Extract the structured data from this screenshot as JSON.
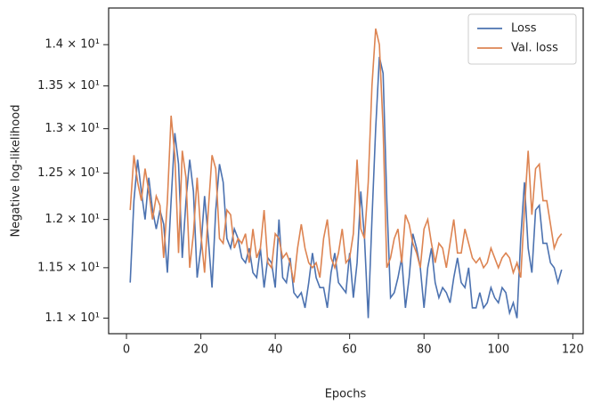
{
  "chart_data": {
    "type": "line",
    "xlabel": "Epochs",
    "ylabel": "Negative log-likelihood",
    "x": [
      1,
      2,
      3,
      4,
      5,
      6,
      7,
      8,
      9,
      10,
      11,
      12,
      13,
      14,
      15,
      16,
      17,
      18,
      19,
      20,
      21,
      22,
      23,
      24,
      25,
      26,
      27,
      28,
      29,
      30,
      31,
      32,
      33,
      34,
      35,
      36,
      37,
      38,
      39,
      40,
      41,
      42,
      43,
      44,
      45,
      46,
      47,
      48,
      49,
      50,
      51,
      52,
      53,
      54,
      55,
      56,
      57,
      58,
      59,
      60,
      61,
      62,
      63,
      64,
      65,
      66,
      67,
      68,
      69,
      70,
      71,
      72,
      73,
      74,
      75,
      76,
      77,
      78,
      79,
      80,
      81,
      82,
      83,
      84,
      85,
      86,
      87,
      88,
      89,
      90,
      91,
      92,
      93,
      94,
      95,
      96,
      97,
      98,
      99,
      100,
      101,
      102,
      103,
      104,
      105,
      106,
      107,
      108,
      109,
      110,
      111,
      112,
      113,
      114,
      115,
      116,
      117
    ],
    "series": [
      {
        "name": "Loss",
        "color": "#4c72b0",
        "values": [
          11.35,
          12.2,
          12.65,
          12.3,
          12.0,
          12.45,
          12.1,
          11.9,
          12.1,
          11.95,
          11.45,
          12.2,
          12.95,
          12.6,
          11.6,
          12.2,
          12.65,
          12.3,
          11.4,
          11.7,
          12.25,
          11.8,
          11.3,
          12.1,
          12.6,
          12.4,
          11.8,
          11.7,
          11.9,
          11.8,
          11.6,
          11.55,
          11.7,
          11.45,
          11.4,
          11.7,
          11.3,
          11.6,
          11.55,
          11.3,
          12.0,
          11.4,
          11.35,
          11.6,
          11.25,
          11.2,
          11.25,
          11.1,
          11.35,
          11.65,
          11.4,
          11.3,
          11.3,
          11.1,
          11.45,
          11.65,
          11.35,
          11.3,
          11.25,
          11.65,
          11.2,
          11.55,
          12.3,
          11.8,
          11.0,
          12.0,
          13.0,
          13.85,
          13.65,
          12.2,
          11.2,
          11.25,
          11.4,
          11.6,
          11.1,
          11.4,
          11.85,
          11.7,
          11.5,
          11.1,
          11.5,
          11.7,
          11.35,
          11.2,
          11.3,
          11.25,
          11.15,
          11.4,
          11.6,
          11.35,
          11.3,
          11.5,
          11.1,
          11.1,
          11.25,
          11.1,
          11.15,
          11.3,
          11.2,
          11.15,
          11.3,
          11.25,
          11.05,
          11.15,
          11.0,
          11.8,
          12.4,
          11.7,
          11.45,
          12.1,
          12.15,
          11.75,
          11.75,
          11.55,
          11.5,
          11.35,
          11.48
        ]
      },
      {
        "name": "Val. loss",
        "color": "#dd8452",
        "values": [
          12.1,
          12.7,
          12.4,
          12.2,
          12.55,
          12.3,
          12.0,
          12.25,
          12.15,
          11.6,
          12.2,
          13.15,
          12.7,
          11.65,
          12.75,
          12.45,
          11.5,
          11.85,
          12.45,
          11.85,
          11.45,
          12.1,
          12.7,
          12.55,
          11.8,
          11.75,
          12.1,
          12.05,
          11.7,
          11.8,
          11.75,
          11.85,
          11.55,
          11.9,
          11.6,
          11.7,
          12.1,
          11.55,
          11.5,
          11.85,
          11.8,
          11.6,
          11.65,
          11.55,
          11.35,
          11.7,
          11.95,
          11.7,
          11.55,
          11.5,
          11.55,
          11.4,
          11.8,
          12.0,
          11.6,
          11.5,
          11.65,
          11.9,
          11.55,
          11.6,
          11.85,
          12.65,
          11.9,
          11.8,
          12.4,
          13.5,
          14.2,
          14.0,
          13.0,
          11.5,
          11.6,
          11.8,
          11.9,
          11.55,
          12.05,
          11.95,
          11.75,
          11.65,
          11.5,
          11.9,
          12.0,
          11.75,
          11.55,
          11.75,
          11.7,
          11.5,
          11.75,
          12.0,
          11.65,
          11.65,
          11.9,
          11.75,
          11.6,
          11.55,
          11.6,
          11.5,
          11.55,
          11.7,
          11.6,
          11.5,
          11.6,
          11.65,
          11.6,
          11.45,
          11.55,
          11.4,
          12.1,
          12.75,
          12.05,
          12.55,
          12.6,
          12.2,
          12.2,
          11.95,
          11.7,
          11.8,
          11.85
        ]
      }
    ],
    "xlim": [
      -4.8,
      122.8
    ],
    "xticks": [
      0,
      20,
      40,
      60,
      80,
      100,
      120
    ],
    "ylim": [
      10.85,
      14.46
    ],
    "yscale": "log",
    "yticks": [
      {
        "value": 11,
        "label": "1.1 × 10¹"
      },
      {
        "value": 11.5,
        "label": "1.15 × 10¹"
      },
      {
        "value": 12,
        "label": "1.2 × 10¹"
      },
      {
        "value": 12.5,
        "label": "1.25 × 10¹"
      },
      {
        "value": 13,
        "label": "1.3 × 10¹"
      },
      {
        "value": 13.5,
        "label": "1.35 × 10¹"
      },
      {
        "value": 14,
        "label": "1.4 × 10¹"
      }
    ],
    "legend": "upper right",
    "grid": false
  }
}
